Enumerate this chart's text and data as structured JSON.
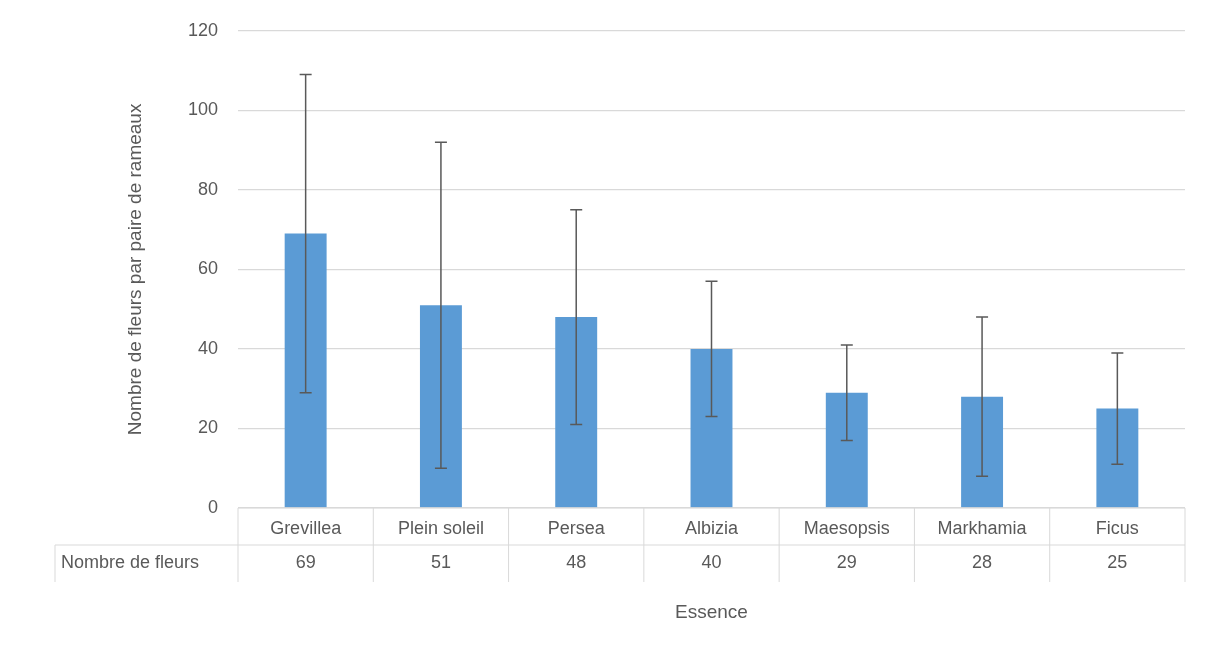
{
  "chart_data": {
    "type": "bar",
    "xlabel": "Essence",
    "ylabel": "Nombre de fleurs par paire de rameaux",
    "categories": [
      "Grevillea",
      "Plein soleil",
      "Persea",
      "Albizia",
      "Maesopsis",
      "Markhamia",
      "Ficus"
    ],
    "series": [
      {
        "name": "Nombre de fleurs",
        "color": "#5b9bd5",
        "values": [
          69,
          51,
          48,
          40,
          29,
          28,
          25
        ],
        "errors": [
          40,
          41,
          27,
          17,
          12,
          20,
          14
        ]
      }
    ],
    "ylim": [
      0,
      120
    ],
    "yticks": [
      0,
      20,
      40,
      60,
      80,
      100,
      120
    ],
    "grid": "y",
    "legend": false,
    "data_labels": true
  }
}
